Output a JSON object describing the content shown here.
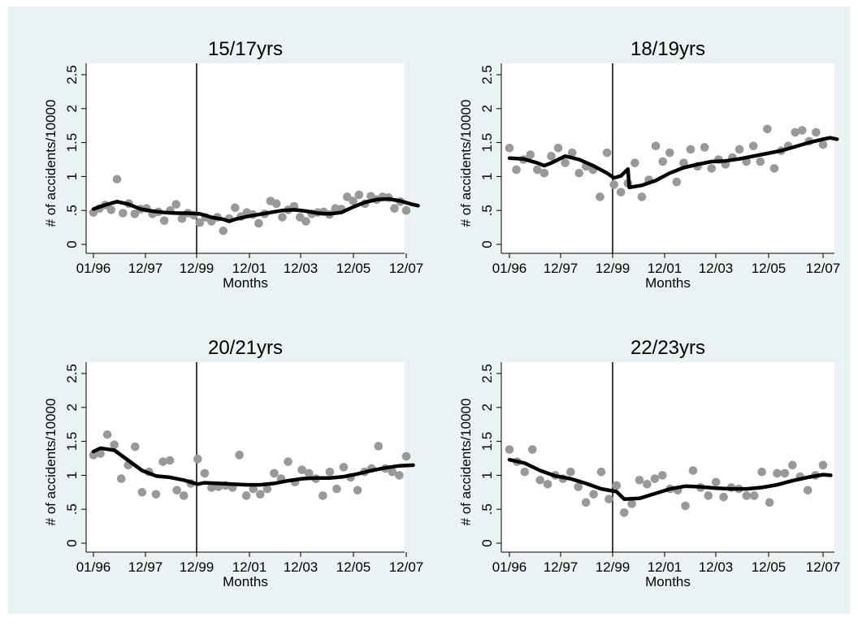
{
  "colors": {
    "outer_background": "#ffffff",
    "panel_background": "#eaf2f3",
    "plot_background": "#ffffff",
    "scatter": "#999999",
    "smooth_line": "#000000",
    "vline": "#000000"
  },
  "chart_data": [
    {
      "type": "scatter",
      "title": "15/17yrs",
      "xlabel": "Months",
      "ylabel": "# of accidents/10000",
      "x_ticks": [
        "01/96",
        "12/97",
        "12/99",
        "12/01",
        "12/03",
        "12/05",
        "12/07"
      ],
      "y_ticks": [
        "0",
        ".5",
        "1",
        "1.5",
        "2",
        "2.5"
      ],
      "ylim": [
        0,
        2.5
      ],
      "grid": false,
      "vertical_line_at": "12/99",
      "series": [
        {
          "kind": "points",
          "values": [
            0.47,
            0.53,
            0.58,
            0.51,
            0.96,
            0.46,
            0.6,
            0.45,
            0.52,
            0.53,
            0.45,
            0.48,
            0.35,
            0.5,
            0.59,
            0.38,
            0.46,
            0.43,
            0.32,
            0.4,
            0.34,
            0.4,
            0.2,
            0.38,
            0.54,
            0.41,
            0.47,
            0.44,
            0.31,
            0.45,
            0.64,
            0.6,
            0.4,
            0.51,
            0.56,
            0.4,
            0.34,
            0.45,
            0.47,
            0.48,
            0.44,
            0.53,
            0.52,
            0.7,
            0.64,
            0.73,
            0.6,
            0.71,
            0.66,
            0.7,
            0.69,
            0.53,
            0.63,
            0.5
          ]
        },
        {
          "kind": "smooth",
          "points": [
            [
              0,
              0.52
            ],
            [
              2,
              0.58
            ],
            [
              4,
              0.63
            ],
            [
              6,
              0.59
            ],
            [
              8,
              0.52
            ],
            [
              10,
              0.49
            ],
            [
              12,
              0.47
            ],
            [
              14,
              0.46
            ],
            [
              16,
              0.46
            ],
            [
              18,
              0.45
            ],
            [
              20,
              0.4
            ],
            [
              22,
              0.37
            ],
            [
              23,
              0.34
            ],
            [
              24,
              0.37
            ],
            [
              26,
              0.41
            ],
            [
              28,
              0.44
            ],
            [
              30,
              0.47
            ],
            [
              32,
              0.5
            ],
            [
              34,
              0.51
            ],
            [
              36,
              0.49
            ],
            [
              38,
              0.46
            ],
            [
              40,
              0.45
            ],
            [
              42,
              0.47
            ],
            [
              44,
              0.55
            ],
            [
              46,
              0.62
            ],
            [
              48,
              0.66
            ],
            [
              50,
              0.67
            ],
            [
              52,
              0.64
            ],
            [
              54,
              0.59
            ],
            [
              55,
              0.57
            ]
          ]
        }
      ]
    },
    {
      "type": "scatter",
      "title": "18/19yrs",
      "xlabel": "Months",
      "ylabel": "# of accidents/10000",
      "x_ticks": [
        "01/96",
        "12/97",
        "12/99",
        "12/01",
        "12/03",
        "12/05",
        "12/07"
      ],
      "y_ticks": [
        "0",
        ".5",
        "1",
        "1.5",
        "2",
        "2.5"
      ],
      "ylim": [
        0,
        2.5
      ],
      "grid": false,
      "vertical_line_at": "12/99",
      "series": [
        {
          "kind": "points",
          "values": [
            1.42,
            1.1,
            1.25,
            1.32,
            1.1,
            1.05,
            1.3,
            1.42,
            1.2,
            1.35,
            1.05,
            1.15,
            1.1,
            0.7,
            1.35,
            0.88,
            0.77,
            0.9,
            1.2,
            0.7,
            0.95,
            1.45,
            1.22,
            1.35,
            0.92,
            1.2,
            1.4,
            1.15,
            1.43,
            1.12,
            1.25,
            1.18,
            1.28,
            1.4,
            1.22,
            1.45,
            1.22,
            1.7,
            1.12,
            1.38,
            1.45,
            1.65,
            1.68,
            1.52,
            1.65,
            1.47
          ]
        },
        {
          "kind": "smooth",
          "points": [
            [
              0,
              1.27
            ],
            [
              2,
              1.26
            ],
            [
              4,
              1.2
            ],
            [
              5,
              1.16
            ],
            [
              6,
              1.2
            ],
            [
              8,
              1.3
            ],
            [
              10,
              1.25
            ],
            [
              12,
              1.16
            ],
            [
              14,
              1.05
            ],
            [
              15,
              0.98
            ],
            [
              16,
              1.01
            ],
            [
              17,
              1.11
            ],
            [
              17.2,
              0.84
            ],
            [
              19,
              0.87
            ],
            [
              21,
              0.94
            ],
            [
              23,
              1.05
            ],
            [
              25,
              1.13
            ],
            [
              27,
              1.18
            ],
            [
              29,
              1.22
            ],
            [
              31,
              1.23
            ],
            [
              33,
              1.26
            ],
            [
              35,
              1.3
            ],
            [
              37,
              1.34
            ],
            [
              39,
              1.38
            ],
            [
              41,
              1.44
            ],
            [
              43,
              1.5
            ],
            [
              45,
              1.55
            ],
            [
              46,
              1.57
            ],
            [
              47,
              1.55
            ]
          ]
        }
      ]
    },
    {
      "type": "scatter",
      "title": "20/21yrs",
      "xlabel": "Months",
      "ylabel": "# of accidents/10000",
      "x_ticks": [
        "01/96",
        "12/97",
        "12/99",
        "12/01",
        "12/03",
        "12/05",
        "12/07"
      ],
      "y_ticks": [
        "0",
        ".5",
        "1",
        "1.5",
        "2",
        "2.5"
      ],
      "ylim": [
        0,
        2.5
      ],
      "grid": false,
      "vertical_line_at": "12/99",
      "series": [
        {
          "kind": "points",
          "values": [
            1.3,
            1.32,
            1.6,
            1.45,
            0.95,
            1.15,
            1.42,
            0.75,
            1.05,
            0.72,
            1.2,
            1.22,
            0.78,
            0.7,
            0.88,
            1.24,
            1.03,
            0.82,
            0.83,
            0.85,
            0.82,
            1.3,
            0.7,
            0.8,
            0.72,
            0.8,
            1.03,
            0.95,
            1.2,
            0.9,
            1.08,
            1.03,
            0.95,
            0.7,
            1.05,
            0.8,
            1.12,
            0.97,
            0.78,
            1.05,
            1.1,
            1.43,
            1.1,
            1.05,
            1.0,
            1.28
          ]
        },
        {
          "kind": "smooth",
          "points": [
            [
              0,
              1.35
            ],
            [
              1,
              1.4
            ],
            [
              3,
              1.37
            ],
            [
              5,
              1.22
            ],
            [
              7,
              1.07
            ],
            [
              9,
              0.99
            ],
            [
              11,
              0.97
            ],
            [
              13,
              0.93
            ],
            [
              15,
              0.87
            ],
            [
              16,
              0.89
            ],
            [
              18,
              0.88
            ],
            [
              20,
              0.87
            ],
            [
              22,
              0.86
            ],
            [
              24,
              0.86
            ],
            [
              26,
              0.88
            ],
            [
              28,
              0.92
            ],
            [
              30,
              0.95
            ],
            [
              32,
              0.96
            ],
            [
              34,
              0.96
            ],
            [
              36,
              0.98
            ],
            [
              38,
              1.02
            ],
            [
              40,
              1.07
            ],
            [
              42,
              1.11
            ],
            [
              44,
              1.14
            ],
            [
              46,
              1.15
            ]
          ]
        }
      ]
    },
    {
      "type": "scatter",
      "title": "22/23yrs",
      "xlabel": "Months",
      "ylabel": "# of accidents/10000",
      "x_ticks": [
        "01/96",
        "12/97",
        "12/99",
        "12/01",
        "12/03",
        "12/05",
        "12/07"
      ],
      "y_ticks": [
        "0",
        ".5",
        "1",
        "1.5",
        "2",
        "2.5"
      ],
      "ylim": [
        0,
        2.5
      ],
      "grid": false,
      "vertical_line_at": "12/99",
      "series": [
        {
          "kind": "points",
          "values": [
            1.38,
            1.2,
            1.05,
            1.38,
            0.93,
            0.87,
            1.0,
            0.95,
            1.05,
            0.83,
            0.6,
            0.72,
            1.05,
            0.65,
            0.85,
            0.45,
            0.58,
            0.93,
            0.87,
            0.95,
            1.0,
            0.8,
            0.78,
            0.55,
            1.07,
            0.82,
            0.7,
            0.9,
            0.68,
            0.82,
            0.8,
            0.7,
            0.7,
            1.05,
            0.6,
            1.03,
            1.03,
            1.15,
            0.98,
            0.78,
            1.0,
            1.15
          ]
        },
        {
          "kind": "smooth",
          "points": [
            [
              0,
              1.23
            ],
            [
              2,
              1.18
            ],
            [
              4,
              1.07
            ],
            [
              6,
              0.99
            ],
            [
              8,
              0.95
            ],
            [
              10,
              0.88
            ],
            [
              12,
              0.8
            ],
            [
              14,
              0.76
            ],
            [
              15,
              0.65
            ],
            [
              17,
              0.66
            ],
            [
              19,
              0.73
            ],
            [
              21,
              0.8
            ],
            [
              23,
              0.84
            ],
            [
              25,
              0.83
            ],
            [
              27,
              0.81
            ],
            [
              29,
              0.8
            ],
            [
              31,
              0.8
            ],
            [
              33,
              0.82
            ],
            [
              35,
              0.86
            ],
            [
              37,
              0.92
            ],
            [
              39,
              0.97
            ],
            [
              41,
              1.01
            ],
            [
              42,
              1.0
            ]
          ]
        }
      ]
    }
  ]
}
